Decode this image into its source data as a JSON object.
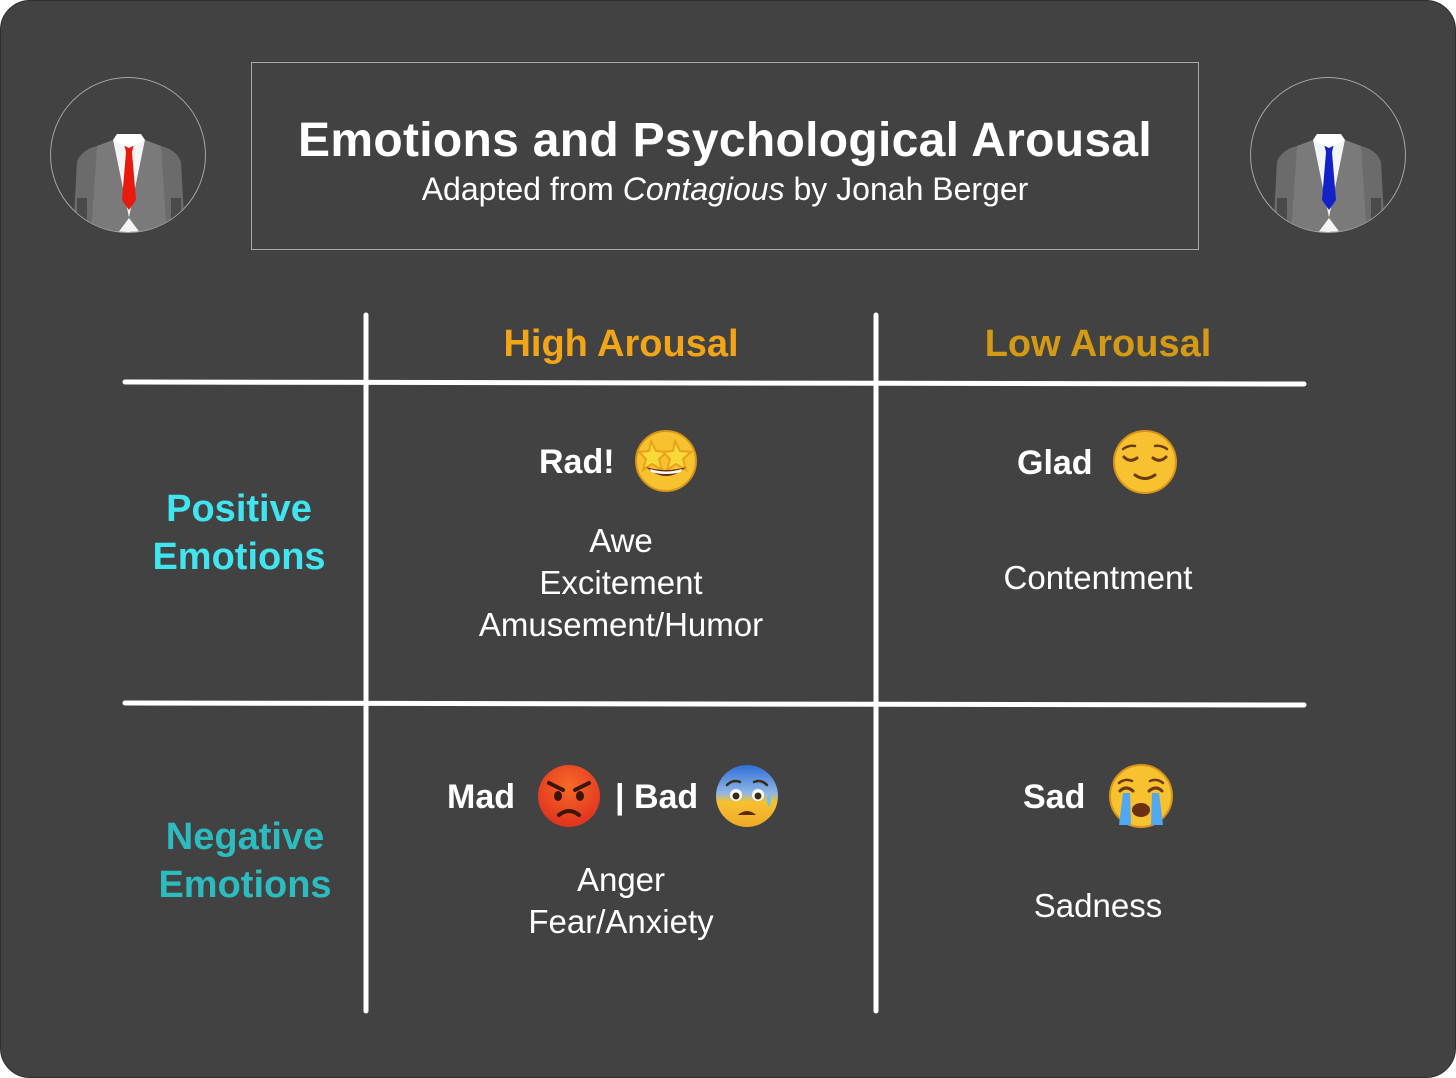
{
  "header": {
    "title": "Emotions and Psychological Arousal",
    "subtitle_prefix": "Adapted from ",
    "subtitle_book": "Contagious",
    "subtitle_suffix": " by Jonah Berger"
  },
  "avatars": {
    "left": {
      "icon": "suit-red-tie-icon",
      "tie_color": "#e8190f"
    },
    "right": {
      "icon": "suit-blue-tie-icon",
      "tie_color": "#1222c8"
    }
  },
  "columns": {
    "high": {
      "label": "High Arousal",
      "color": "#f2a516"
    },
    "low": {
      "label": "Low Arousal",
      "color": "#d49a14"
    }
  },
  "rows": {
    "positive": {
      "line1": "Positive",
      "line2": "Emotions",
      "color": "#40e5ef"
    },
    "negative": {
      "line1": "Negative",
      "line2": "Emotions",
      "color": "#2cbcbf"
    }
  },
  "cells": {
    "positive_high": {
      "heading": "Rad!",
      "emoji": "star-struck-face-icon",
      "items": [
        "Awe",
        "Excitement",
        "Amusement/Humor"
      ]
    },
    "positive_low": {
      "heading": "Glad",
      "emoji": "relieved-face-icon",
      "items": [
        "Contentment"
      ]
    },
    "negative_high": {
      "heading": "Mad",
      "emoji": "pouting-face-icon",
      "separator": "| Bad",
      "emoji2": "anxious-face-icon",
      "items": [
        "Anger",
        "Fear/Anxiety"
      ]
    },
    "negative_low": {
      "heading": "Sad",
      "emoji": "crying-face-icon",
      "items": [
        "Sadness"
      ]
    }
  }
}
